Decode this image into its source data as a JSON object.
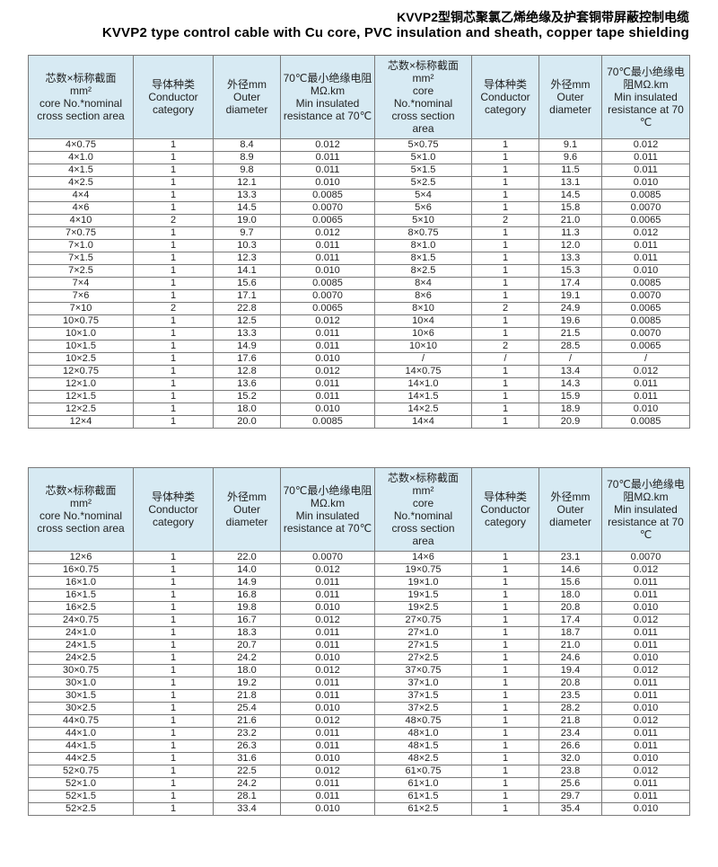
{
  "title": {
    "zh": "KVVP2型铜芯聚氯乙烯绝缘及护套铜带屏蔽控制电缆",
    "en": "KVVP2 type control cable with Cu core, PVC insulation and sheath, copper tape shielding"
  },
  "colors": {
    "header_bg": "#d7eaf3",
    "border": "#7a7a7a",
    "text": "#1f1f1f"
  },
  "columns": [
    {
      "id": "core-spec-left",
      "lines": [
        "芯数×标称截面",
        "mm²",
        "core No.*nominal",
        "cross section area"
      ]
    },
    {
      "id": "conductor-category-left",
      "lines": [
        "导体种类",
        "Conductor",
        "category"
      ]
    },
    {
      "id": "outer-diameter-left",
      "lines": [
        "外径mm",
        "Outer",
        "diameter"
      ]
    },
    {
      "id": "min-resistance-left",
      "lines": [
        "70℃最小绝缘电阻",
        "MΩ.km",
        "Min insulated",
        "resistance at 70℃"
      ]
    },
    {
      "id": "core-spec-right",
      "lines": [
        "芯数×标称截面",
        "mm²",
        "core",
        "No.*nominal",
        "cross section",
        "area"
      ]
    },
    {
      "id": "conductor-category-right",
      "lines": [
        "导体种类",
        "Conductor",
        "category"
      ]
    },
    {
      "id": "outer-diameter-right",
      "lines": [
        "外径mm",
        "Outer",
        "diameter"
      ]
    },
    {
      "id": "min-resistance-right",
      "lines": [
        "70℃最小绝缘电",
        "阻MΩ.km",
        "Min insulated",
        "resistance at 70",
        "℃"
      ]
    }
  ],
  "table1": {
    "rows": [
      [
        "4×0.75",
        "1",
        "8.4",
        "0.012",
        "5×0.75",
        "1",
        "9.1",
        "0.012"
      ],
      [
        "4×1.0",
        "1",
        "8.9",
        "0.011",
        "5×1.0",
        "1",
        "9.6",
        "0.011"
      ],
      [
        "4×1.5",
        "1",
        "9.8",
        "0.011",
        "5×1.5",
        "1",
        "11.5",
        "0.011"
      ],
      [
        "4×2.5",
        "1",
        "12.1",
        "0.010",
        "5×2.5",
        "1",
        "13.1",
        "0.010"
      ],
      [
        "4×4",
        "1",
        "13.3",
        "0.0085",
        "5×4",
        "1",
        "14.5",
        "0.0085"
      ],
      [
        "4×6",
        "1",
        "14.5",
        "0.0070",
        "5×6",
        "1",
        "15.8",
        "0.0070"
      ],
      [
        "4×10",
        "2",
        "19.0",
        "0.0065",
        "5×10",
        "2",
        "21.0",
        "0.0065"
      ],
      [
        "7×0.75",
        "1",
        "9.7",
        "0.012",
        "8×0.75",
        "1",
        "11.3",
        "0.012"
      ],
      [
        "7×1.0",
        "1",
        "10.3",
        "0.011",
        "8×1.0",
        "1",
        "12.0",
        "0.011"
      ],
      [
        "7×1.5",
        "1",
        "12.3",
        "0.011",
        "8×1.5",
        "1",
        "13.3",
        "0.011"
      ],
      [
        "7×2.5",
        "1",
        "14.1",
        "0.010",
        "8×2.5",
        "1",
        "15.3",
        "0.010"
      ],
      [
        "7×4",
        "1",
        "15.6",
        "0.0085",
        "8×4",
        "1",
        "17.4",
        "0.0085"
      ],
      [
        "7×6",
        "1",
        "17.1",
        "0.0070",
        "8×6",
        "1",
        "19.1",
        "0.0070"
      ],
      [
        "7×10",
        "2",
        "22.8",
        "0.0065",
        "8×10",
        "2",
        "24.9",
        "0.0065"
      ],
      [
        "10×0.75",
        "1",
        "12.5",
        "0.012",
        "10×4",
        "1",
        "19.6",
        "0.0085"
      ],
      [
        "10×1.0",
        "1",
        "13.3",
        "0.011",
        "10×6",
        "1",
        "21.5",
        "0.0070"
      ],
      [
        "10×1.5",
        "1",
        "14.9",
        "0.011",
        "10×10",
        "2",
        "28.5",
        "0.0065"
      ],
      [
        "10×2.5",
        "1",
        "17.6",
        "0.010",
        "/",
        "/",
        "/",
        "/"
      ],
      [
        "12×0.75",
        "1",
        "12.8",
        "0.012",
        "14×0.75",
        "1",
        "13.4",
        "0.012"
      ],
      [
        "12×1.0",
        "1",
        "13.6",
        "0.011",
        "14×1.0",
        "1",
        "14.3",
        "0.011"
      ],
      [
        "12×1.5",
        "1",
        "15.2",
        "0.011",
        "14×1.5",
        "1",
        "15.9",
        "0.011"
      ],
      [
        "12×2.5",
        "1",
        "18.0",
        "0.010",
        "14×2.5",
        "1",
        "18.9",
        "0.010"
      ],
      [
        "12×4",
        "1",
        "20.0",
        "0.0085",
        "14×4",
        "1",
        "20.9",
        "0.0085"
      ]
    ]
  },
  "table2": {
    "rows": [
      [
        "12×6",
        "1",
        "22.0",
        "0.0070",
        "14×6",
        "1",
        "23.1",
        "0.0070"
      ],
      [
        "16×0.75",
        "1",
        "14.0",
        "0.012",
        "19×0.75",
        "1",
        "14.6",
        "0.012"
      ],
      [
        "16×1.0",
        "1",
        "14.9",
        "0.011",
        "19×1.0",
        "1",
        "15.6",
        "0.011"
      ],
      [
        "16×1.5",
        "1",
        "16.8",
        "0.011",
        "19×1.5",
        "1",
        "18.0",
        "0.011"
      ],
      [
        "16×2.5",
        "1",
        "19.8",
        "0.010",
        "19×2.5",
        "1",
        "20.8",
        "0.010"
      ],
      [
        "24×0.75",
        "1",
        "16.7",
        "0.012",
        "27×0.75",
        "1",
        "17.4",
        "0.012"
      ],
      [
        "24×1.0",
        "1",
        "18.3",
        "0.011",
        "27×1.0",
        "1",
        "18.7",
        "0.011"
      ],
      [
        "24×1.5",
        "1",
        "20.7",
        "0.011",
        "27×1.5",
        "1",
        "21.0",
        "0.011"
      ],
      [
        "24×2.5",
        "1",
        "24.2",
        "0.010",
        "27×2.5",
        "1",
        "24.6",
        "0.010"
      ],
      [
        "30×0.75",
        "1",
        "18.0",
        "0.012",
        "37×0.75",
        "1",
        "19.4",
        "0.012"
      ],
      [
        "30×1.0",
        "1",
        "19.2",
        "0.011",
        "37×1.0",
        "1",
        "20.8",
        "0.011"
      ],
      [
        "30×1.5",
        "1",
        "21.8",
        "0.011",
        "37×1.5",
        "1",
        "23.5",
        "0.011"
      ],
      [
        "30×2.5",
        "1",
        "25.4",
        "0.010",
        "37×2.5",
        "1",
        "28.2",
        "0.010"
      ],
      [
        "44×0.75",
        "1",
        "21.6",
        "0.012",
        "48×0.75",
        "1",
        "21.8",
        "0.012"
      ],
      [
        "44×1.0",
        "1",
        "23.2",
        "0.011",
        "48×1.0",
        "1",
        "23.4",
        "0.011"
      ],
      [
        "44×1.5",
        "1",
        "26.3",
        "0.011",
        "48×1.5",
        "1",
        "26.6",
        "0.011"
      ],
      [
        "44×2.5",
        "1",
        "31.6",
        "0.010",
        "48×2.5",
        "1",
        "32.0",
        "0.010"
      ],
      [
        "52×0.75",
        "1",
        "22.5",
        "0.012",
        "61×0.75",
        "1",
        "23.8",
        "0.012"
      ],
      [
        "52×1.0",
        "1",
        "24.2",
        "0.011",
        "61×1.0",
        "1",
        "25.6",
        "0.011"
      ],
      [
        "52×1.5",
        "1",
        "28.1",
        "0.011",
        "61×1.5",
        "1",
        "29.7",
        "0.011"
      ],
      [
        "52×2.5",
        "1",
        "33.4",
        "0.010",
        "61×2.5",
        "1",
        "35.4",
        "0.010"
      ]
    ]
  }
}
